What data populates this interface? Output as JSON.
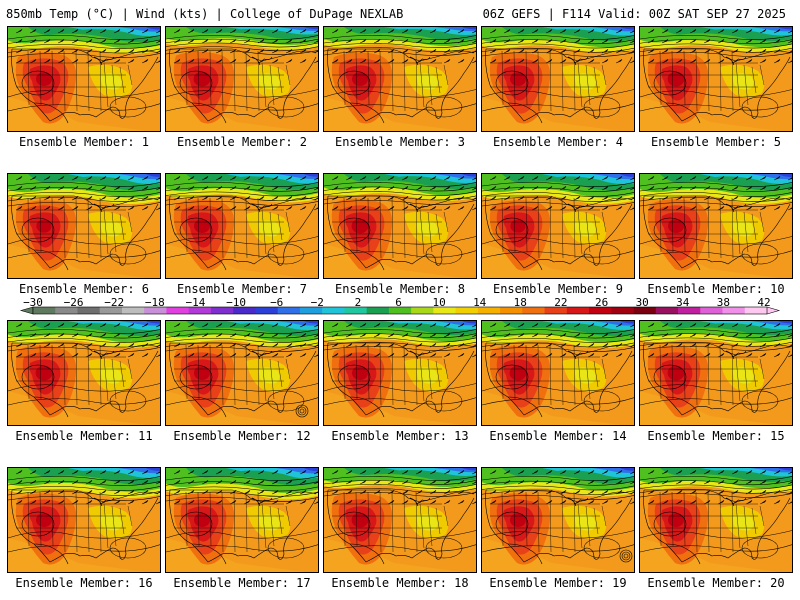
{
  "header": {
    "left": "850mb Temp (°C) | Wind (kts) | College of DuPage NEXLAB",
    "right": "06Z GEFS | F114 Valid: 00Z SAT SEP 27 2025"
  },
  "member_prefix": "Ensemble Member: ",
  "members": [
    {
      "id": "1",
      "label": "Ensemble Member: 1",
      "hot": 1.0,
      "cold": 0.9
    },
    {
      "id": "2",
      "label": "Ensemble Member: 2",
      "hot": 1.05,
      "cold": 0.75
    },
    {
      "id": "3",
      "label": "Ensemble Member: 3",
      "hot": 1.0,
      "cold": 0.8
    },
    {
      "id": "4",
      "label": "Ensemble Member: 4",
      "hot": 1.0,
      "cold": 0.85
    },
    {
      "id": "5",
      "label": "Ensemble Member: 5",
      "hot": 1.05,
      "cold": 0.85
    },
    {
      "id": "6",
      "label": "Ensemble Member: 6",
      "hot": 0.95,
      "cold": 1.0
    },
    {
      "id": "7",
      "label": "Ensemble Member: 7",
      "hot": 1.0,
      "cold": 0.95
    },
    {
      "id": "8",
      "label": "Ensemble Member: 8",
      "hot": 1.05,
      "cold": 0.9
    },
    {
      "id": "9",
      "label": "Ensemble Member: 9",
      "hot": 0.95,
      "cold": 1.0
    },
    {
      "id": "10",
      "label": "Ensemble Member: 10",
      "hot": 1.0,
      "cold": 1.0
    },
    {
      "id": "11",
      "label": "Ensemble Member: 11",
      "hot": 1.05,
      "cold": 0.9
    },
    {
      "id": "12",
      "label": "Ensemble Member: 12",
      "hot": 1.0,
      "cold": 0.9
    },
    {
      "id": "13",
      "label": "Ensemble Member: 13",
      "hot": 1.0,
      "cold": 0.85
    },
    {
      "id": "14",
      "label": "Ensemble Member: 14",
      "hot": 1.05,
      "cold": 0.9
    },
    {
      "id": "15",
      "label": "Ensemble Member: 15",
      "hot": 1.05,
      "cold": 0.85
    },
    {
      "id": "16",
      "label": "Ensemble Member: 16",
      "hot": 1.0,
      "cold": 1.0
    },
    {
      "id": "17",
      "label": "Ensemble Member: 17",
      "hot": 1.0,
      "cold": 1.05
    },
    {
      "id": "18",
      "label": "Ensemble Member: 18",
      "hot": 1.05,
      "cold": 0.8
    },
    {
      "id": "19",
      "label": "Ensemble Member: 19",
      "hot": 1.0,
      "cold": 0.95
    },
    {
      "id": "20",
      "label": "Ensemble Member: 20",
      "hot": 1.0,
      "cold": 0.85
    }
  ],
  "colorbar": {
    "labels": [
      "-30",
      "-26",
      "-22",
      "-18",
      "-14",
      "-10",
      "-6",
      "-2",
      "2",
      "6",
      "10",
      "14",
      "18",
      "22",
      "26",
      "30",
      "34",
      "38",
      "42"
    ],
    "colors": [
      "#5f7a5f",
      "#8a8a8a",
      "#6e6e6e",
      "#999999",
      "#bdbdbd",
      "#c98fd8",
      "#e040e0",
      "#b23ad8",
      "#7f2fd0",
      "#4b2acb",
      "#2a40d8",
      "#2f6fe8",
      "#1f9ee0",
      "#20c4d8",
      "#20c8a0",
      "#1aa050",
      "#4fc020",
      "#a8d818",
      "#e8e818",
      "#f0d000",
      "#f5b000",
      "#f59000",
      "#f07010",
      "#e84018",
      "#d81818",
      "#c00010",
      "#a00010",
      "#7a0010",
      "#9a1060",
      "#c020a0",
      "#e060d8",
      "#f090e8",
      "#ffc8f0"
    ]
  }
}
